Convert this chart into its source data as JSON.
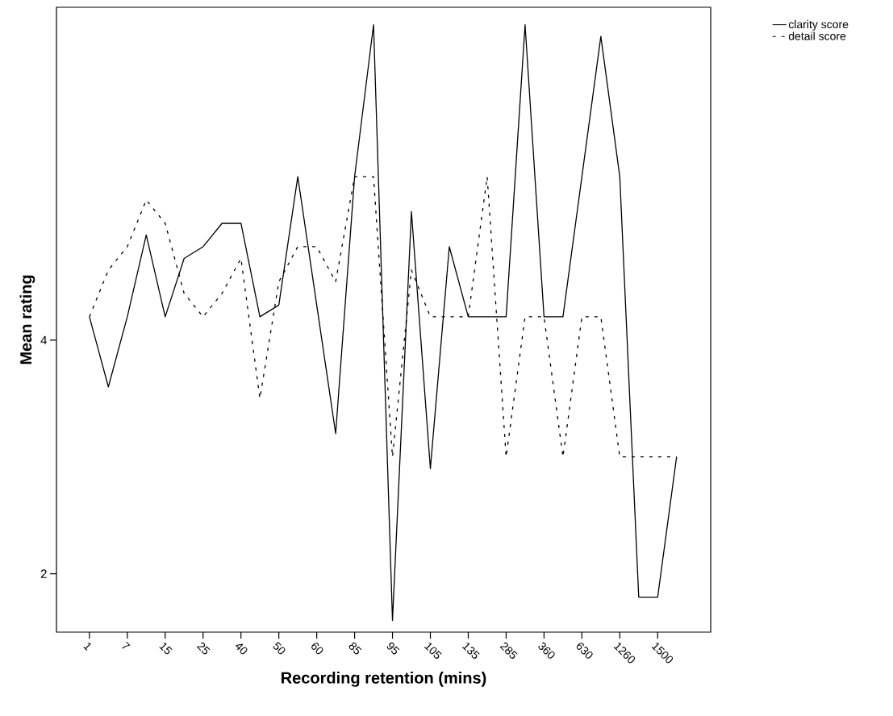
{
  "chart_data": {
    "type": "line",
    "xlabel": "Recording retention (mins)",
    "ylabel": "Mean rating",
    "categories": [
      "1",
      null,
      "7",
      null,
      "15",
      null,
      "25",
      null,
      "40",
      null,
      "50",
      null,
      "60",
      null,
      "85",
      null,
      "95",
      null,
      "105",
      null,
      "135",
      null,
      "285",
      null,
      "360",
      null,
      "630",
      null,
      "1260",
      null,
      "1500",
      null
    ],
    "series": [
      {
        "name": "clarity score",
        "color": "#000000",
        "line_style": "solid",
        "values": [
          4.2,
          3.6,
          4.2,
          4.9,
          4.2,
          4.7,
          4.8,
          5.0,
          5.0,
          4.2,
          4.3,
          5.4,
          4.3,
          3.2,
          5.4,
          6.7,
          1.6,
          5.1,
          2.9,
          4.8,
          4.2,
          4.2,
          4.2,
          6.7,
          4.2,
          4.2,
          5.4,
          6.6,
          5.4,
          1.8,
          1.8,
          3.0
        ]
      },
      {
        "name": "detail score",
        "color": "#000000",
        "line_style": "dashed",
        "values": [
          4.2,
          4.6,
          4.8,
          5.2,
          5.0,
          4.4,
          4.2,
          4.4,
          4.7,
          3.5,
          4.5,
          4.8,
          4.8,
          4.5,
          5.4,
          5.4,
          3.0,
          4.6,
          4.2,
          4.2,
          4.2,
          5.4,
          3.0,
          4.2,
          4.2,
          3.0,
          4.2,
          4.2,
          3.0,
          3.0,
          3.0,
          3.0
        ]
      }
    ],
    "ylim": [
      1.5,
      6.85
    ],
    "yticks": [
      2,
      4
    ],
    "grid": false,
    "legend": "top right",
    "marker": "none"
  }
}
